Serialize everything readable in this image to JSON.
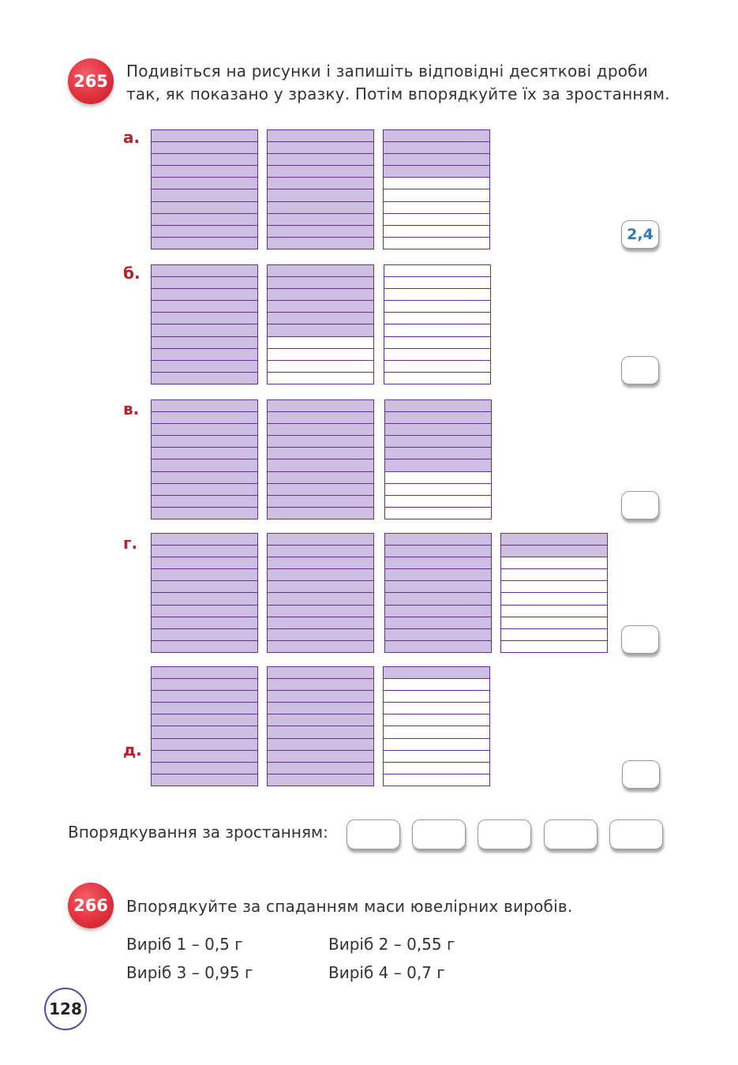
{
  "task265": {
    "number": "265",
    "text_line1": "Подивіться на рисунки і запишіть відповідні десяткові дроби",
    "text_line2": "так, як показано у зразку. Потім впорядкуйте їх за зростанням.",
    "rows": [
      {
        "label": "а.",
        "answer": "2,4",
        "grid_fills": [
          10,
          10,
          4
        ]
      },
      {
        "label": "б.",
        "answer": "",
        "grid_fills": [
          10,
          6,
          0
        ]
      },
      {
        "label": "в.",
        "answer": "",
        "grid_fills": [
          10,
          10,
          6
        ]
      },
      {
        "label": "г.",
        "answer": "",
        "grid_fills": [
          10,
          10,
          10,
          2
        ]
      },
      {
        "label": "д.",
        "answer": "",
        "grid_fills": [
          10,
          10,
          1
        ]
      }
    ],
    "ordering_label": "Впорядкування за зростанням:",
    "ordering_boxes": [
      "",
      "",
      "",
      "",
      ""
    ]
  },
  "task266": {
    "number": "266",
    "text": "Впорядкуйте за спаданням маси ювелірних виробів.",
    "items": [
      "Виріб 1 – 0,5 г",
      "Виріб 2 – 0,55 г",
      "Виріб 3 – 0,95 г",
      "Виріб 4 – 0,7 г"
    ]
  },
  "page_number": "128",
  "colors": {
    "accent_red": "#e0313e",
    "grid_border": "#6b2d8f",
    "grid_fill": "#cdbfe2",
    "answer_blue": "#2f7cb5"
  }
}
